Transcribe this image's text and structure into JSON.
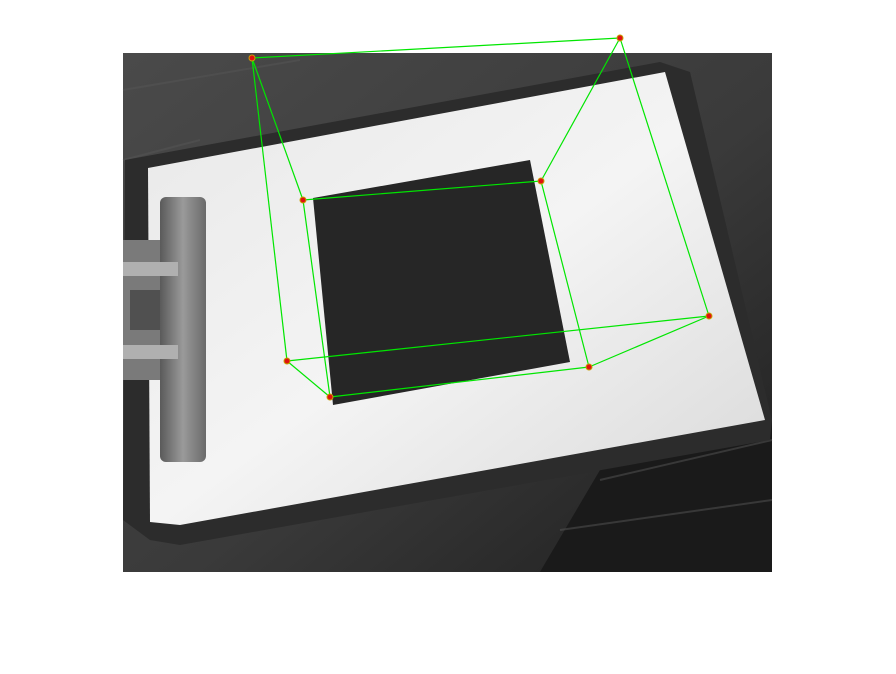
{
  "figure": {
    "background": "#ffffff",
    "overlay": {
      "line_color": "#00e600",
      "marker_fill": "#e01010",
      "marker_ring": "#c8a000"
    }
  }
}
